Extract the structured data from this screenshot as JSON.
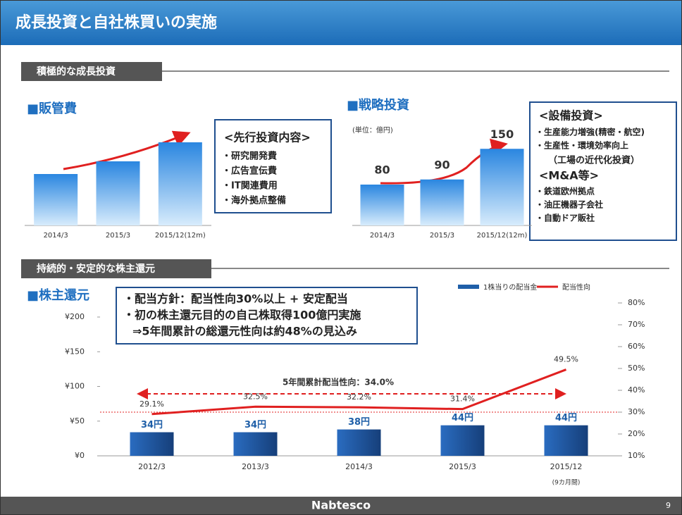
{
  "slide_title": "成長投資と自社株買いの実施",
  "section_1": "積極的な成長投資",
  "section_2": "持続的・安定的な株主還元",
  "box_1": [
    "<先行投資内容>",
    "・研究開発費",
    "・広告宣伝費",
    "・IT関連費用",
    "・海外拠点整備"
  ],
  "box_2": [
    "<設備投資>",
    "・生産能力増強(精密・航空)",
    "・生産性・環境効率向上",
    "（工場の近代化投資）",
    "<M&A等>",
    "・鉄道欧州拠点",
    "・油圧機器子会社",
    "・自動ドア販社"
  ],
  "box_3": [
    "・配当方針：配当性向30%以上 + 安定配当",
    "・初の株主還元目的の自己株取得100億円実施",
    "⇒5年間累計の総還元性向は約48%の見込み"
  ],
  "footer": {
    "brand": "Nabtesco",
    "page": "9"
  },
  "chart_data": [
    {
      "type": "bar",
      "title": "■販管費",
      "categories": [
        "2014/3",
        "2015/3",
        "2015/12(12m)"
      ],
      "values": [
        73,
        91,
        118
      ],
      "ylim": [
        0,
        150
      ]
    },
    {
      "type": "bar",
      "title": "■戦略投資",
      "unit": "(単位：億円)",
      "categories": [
        "2014/3",
        "2015/3",
        "2015/12(12m)"
      ],
      "values": [
        80,
        90,
        150
      ],
      "ylim": [
        0,
        200
      ]
    },
    {
      "type": "bar_line",
      "title": "■株主還元",
      "categories": [
        "2012/3",
        "2013/3",
        "2014/3",
        "2015/3",
        "2015/12"
      ],
      "category_note": "(9カ月間)",
      "series": [
        {
          "name": "1株当りの配当金",
          "color": "#1f5fa8",
          "values": [
            34,
            34,
            38,
            44,
            44
          ],
          "value_labels": [
            "34円",
            "34円",
            "38円",
            "44円",
            "44円"
          ]
        },
        {
          "name": "配当性向",
          "color": "#e02020",
          "axis": "y2",
          "values": [
            29.1,
            32.5,
            32.2,
            31.4,
            49.5
          ],
          "value_labels": [
            "29.1%",
            "32.5%",
            "32.2%",
            "31.4%",
            "49.5%"
          ]
        }
      ],
      "ylim": [
        0,
        200
      ],
      "yticks": [
        {
          "value": 0,
          "label": "¥0"
        },
        {
          "value": 50,
          "label": "¥50"
        },
        {
          "value": 100,
          "label": "¥100"
        },
        {
          "value": 150,
          "label": "¥150"
        },
        {
          "value": 200,
          "label": "¥200"
        }
      ],
      "y2lim": [
        10,
        80
      ],
      "y2ticks": [
        {
          "value": 10,
          "label": "10%"
        },
        {
          "value": 20,
          "label": "20%"
        },
        {
          "value": 30,
          "label": "30%"
        },
        {
          "value": 40,
          "label": "40%"
        },
        {
          "value": 50,
          "label": "50%"
        },
        {
          "value": 60,
          "label": "60%"
        },
        {
          "value": 70,
          "label": "70%"
        },
        {
          "value": 80,
          "label": "80%"
        }
      ],
      "reference_line": 30,
      "annotation": "5年間累計配当性向：34.0%",
      "legend": "top"
    }
  ]
}
